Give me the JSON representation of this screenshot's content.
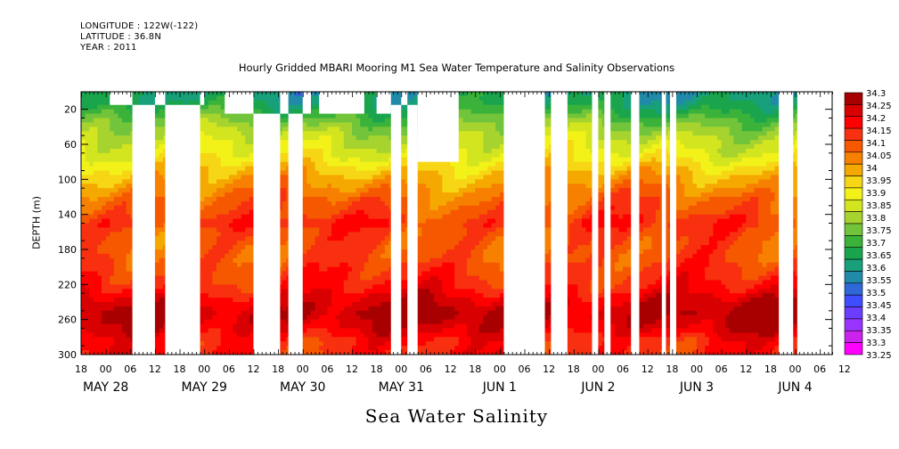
{
  "header": {
    "longitude": "LONGITUDE : 122W(-122)",
    "latitude": "LATITUDE : 36.8N",
    "year": "YEAR : 2011"
  },
  "title": "Hourly Gridded MBARI Mooring M1 Sea Water Temperature and Salinity Observations",
  "x_title": "Sea Water Salinity",
  "y_title": "DEPTH (m)",
  "chart_data": {
    "type": "heatmap",
    "variable": "Sea Water Salinity",
    "x_unit": "hours since 2011-05-27 18:00",
    "xlim": [
      0,
      183
    ],
    "ylim": [
      300,
      0
    ],
    "y_ticks": [
      20,
      60,
      100,
      140,
      180,
      220,
      260,
      300
    ],
    "hour_tick_labels": [
      "18",
      "00",
      "06",
      "12",
      "18",
      "00",
      "06",
      "12",
      "18",
      "00",
      "06",
      "12",
      "18",
      "00",
      "06",
      "12",
      "18",
      "00",
      "06",
      "12",
      "18",
      "00",
      "06",
      "12",
      "18",
      "00",
      "06",
      "12",
      "18",
      "00",
      "06",
      "12"
    ],
    "date_labels": [
      {
        "label": "MAY 28",
        "hour": 6
      },
      {
        "label": "MAY 29",
        "hour": 30
      },
      {
        "label": "MAY 30",
        "hour": 54
      },
      {
        "label": "MAY 31",
        "hour": 78
      },
      {
        "label": "JUN  1",
        "hour": 102
      },
      {
        "label": "JUN  2",
        "hour": 126
      },
      {
        "label": "JUN  3",
        "hour": 150
      },
      {
        "label": "JUN  4",
        "hour": 174
      }
    ],
    "legend_levels": [
      33.25,
      33.3,
      33.35,
      33.4,
      33.45,
      33.5,
      33.55,
      33.6,
      33.65,
      33.7,
      33.75,
      33.8,
      33.85,
      33.9,
      33.95,
      34,
      34.05,
      34.1,
      34.15,
      34.2,
      34.25,
      34.3
    ],
    "legend_colors": [
      "#ff00ff",
      "#cc22ee",
      "#9933ff",
      "#6a3dff",
      "#3d4dff",
      "#2f68d8",
      "#208aa8",
      "#17a07a",
      "#1aa54d",
      "#3bb23a",
      "#72c43a",
      "#a6d32e",
      "#d3e51f",
      "#f3f218",
      "#f6d615",
      "#f5a800",
      "#f88000",
      "#f65800",
      "#f83010",
      "#ff0000",
      "#d80000",
      "#a80000"
    ],
    "profile": {
      "depths": [
        5,
        15,
        25,
        35,
        45,
        55,
        65,
        75,
        85,
        95,
        110,
        125,
        140,
        150,
        160,
        175,
        190,
        205,
        215,
        225,
        240,
        255,
        270,
        285,
        300
      ],
      "salinity": [
        33.63,
        33.66,
        33.72,
        33.78,
        33.83,
        33.87,
        33.9,
        33.93,
        33.98,
        34.02,
        34.07,
        34.12,
        34.14,
        34.18,
        34.14,
        34.12,
        34.13,
        34.16,
        34.18,
        34.21,
        34.28,
        34.31,
        34.27,
        34.2,
        34.19
      ]
    },
    "gaps": [
      {
        "from": 12.5,
        "to": 18,
        "top": 15
      },
      {
        "from": 20.5,
        "to": 29,
        "top": 15
      },
      {
        "from": 42,
        "to": 48.5,
        "top": 25
      },
      {
        "from": 50.5,
        "to": 54,
        "top": 25
      },
      {
        "from": 75.5,
        "to": 78,
        "top": 15
      },
      {
        "from": 79.5,
        "to": 82,
        "top": 15
      },
      {
        "from": 103,
        "to": 113,
        "top": 0
      },
      {
        "from": 114.5,
        "to": 118.5,
        "top": 0
      },
      {
        "from": 124.5,
        "to": 126,
        "top": 0
      },
      {
        "from": 127.5,
        "to": 129,
        "top": 0
      },
      {
        "from": 134,
        "to": 136,
        "top": 0
      },
      {
        "from": 141.5,
        "to": 142.5,
        "top": 0
      },
      {
        "from": 143.5,
        "to": 145,
        "top": 0
      },
      {
        "from": 170,
        "to": 173.5,
        "top": 0
      },
      {
        "from": 174.5,
        "to": 183,
        "top": 0
      }
    ],
    "truncated": [
      {
        "from": 7,
        "to": 12.5,
        "bottom": 15
      },
      {
        "from": 18,
        "to": 20.5,
        "bottom": 15
      },
      {
        "from": 29,
        "to": 30,
        "bottom": 15
      },
      {
        "from": 35,
        "to": 42,
        "bottom": 25
      },
      {
        "from": 48.5,
        "to": 50.5,
        "bottom": 25
      },
      {
        "from": 54,
        "to": 56,
        "bottom": 25
      },
      {
        "from": 58,
        "to": 69,
        "bottom": 25
      },
      {
        "from": 72,
        "to": 75.5,
        "bottom": 25
      },
      {
        "from": 78,
        "to": 79.5,
        "bottom": 15
      },
      {
        "from": 82,
        "to": 92,
        "bottom": 80
      }
    ]
  }
}
